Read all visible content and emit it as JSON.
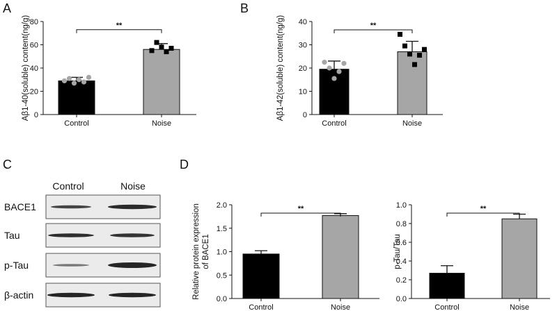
{
  "panels": {
    "a": "A",
    "b": "B",
    "c": "C",
    "d": "D"
  },
  "blot": {
    "columns": [
      "Control",
      "Noise"
    ],
    "rows": [
      {
        "label": "BACE1",
        "bands": [
          "Control",
          "Noise"
        ]
      },
      {
        "label": "Tau",
        "bands": [
          "Control",
          "Noise"
        ]
      },
      {
        "label": "p-Tau",
        "bands": [
          "Control",
          "Noise"
        ]
      },
      {
        "label": "β-actin",
        "bands": [
          "Control",
          "Noise"
        ]
      }
    ]
  },
  "colors": {
    "control": "#000000",
    "noise": "#a6a6a6",
    "control_dot": "#a6a6a6",
    "noise_dot": "#000000"
  },
  "chart_data": [
    {
      "id": "A",
      "type": "bar",
      "categories": [
        "Control",
        "Noise"
      ],
      "values": [
        29,
        56
      ],
      "errors": [
        3,
        5
      ],
      "points": [
        [
          29,
          31,
          27,
          30,
          28,
          32
        ],
        [
          55,
          62,
          58,
          54,
          57
        ]
      ],
      "ylabel": "Aβ1-40(soluble) content(ng/g)",
      "ylim": [
        0,
        80
      ],
      "yticks": [
        0,
        20,
        40,
        60,
        80
      ],
      "significance": "**"
    },
    {
      "id": "B",
      "type": "bar",
      "categories": [
        "Control",
        "Noise"
      ],
      "values": [
        19.5,
        27
      ],
      "errors": [
        3.5,
        4.5
      ],
      "points": [
        [
          22.5,
          20,
          15.5,
          18.5,
          22
        ],
        [
          34.5,
          29.5,
          26,
          21.5,
          25.5,
          28
        ]
      ],
      "ylabel": "Aβ1-42(soluble) content(ng/g)",
      "ylim": [
        0,
        40
      ],
      "yticks": [
        0,
        10,
        20,
        30,
        40
      ],
      "significance": "**"
    },
    {
      "id": "D1",
      "type": "bar",
      "categories": [
        "Control",
        "Noise"
      ],
      "values": [
        0.95,
        1.77
      ],
      "errors": [
        0.07,
        0.04
      ],
      "ylabel": "Relative protein expression of BACE1",
      "ylabel_lines": [
        "Relative protein expression",
        "of BACE1"
      ],
      "ylim": [
        0,
        2.0
      ],
      "yticks": [
        "0.0",
        "0.5",
        "1.0",
        "1.5",
        "2.0"
      ],
      "significance": "**"
    },
    {
      "id": "D2",
      "type": "bar",
      "categories": [
        "Control",
        "Noise"
      ],
      "values": [
        0.27,
        0.85
      ],
      "errors": [
        0.08,
        0.05
      ],
      "ylabel": "p-Tau/Tau",
      "ylim": [
        0,
        1.0
      ],
      "yticks": [
        "0.0",
        "0.2",
        "0.4",
        "0.6",
        "0.8",
        "1.0"
      ],
      "significance": "**"
    }
  ]
}
